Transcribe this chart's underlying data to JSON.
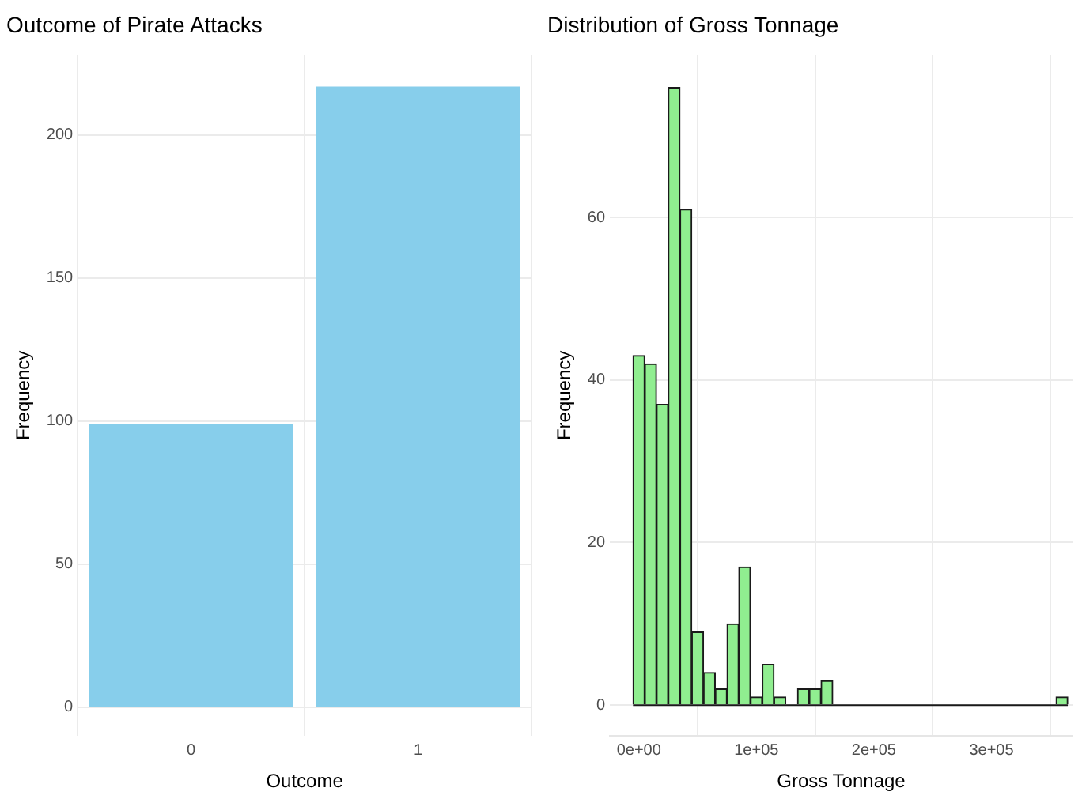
{
  "chart_data": [
    {
      "type": "bar",
      "title": "Outcome of Pirate Attacks",
      "xlabel": "Outcome",
      "ylabel": "Frequency",
      "categories": [
        "0",
        "1"
      ],
      "values": [
        99,
        217
      ],
      "color": "#87ceeb",
      "ylim": [
        -10,
        228
      ],
      "yticks": [
        0,
        50,
        100,
        150,
        200
      ],
      "grid": true
    },
    {
      "type": "histogram",
      "title": "Distribution of Gross Tonnage",
      "xlabel": "Gross Tonnage",
      "ylabel": "Frequency",
      "bins": [
        -5000,
        5000,
        15000,
        25000,
        35000,
        45000,
        55000,
        65000,
        75000,
        85000,
        95000,
        105000,
        115000,
        125000,
        135000,
        145000,
        155000,
        165000,
        175000,
        185000,
        195000,
        205000,
        215000,
        225000,
        235000,
        245000,
        255000,
        265000,
        275000,
        285000,
        295000,
        305000,
        315000,
        325000,
        335000,
        345000,
        355000,
        365000
      ],
      "values": [
        43,
        42,
        37,
        76,
        61,
        9,
        4,
        2,
        10,
        17,
        1,
        5,
        1,
        0,
        2,
        2,
        3,
        0,
        0,
        0,
        0,
        0,
        0,
        0,
        0,
        0,
        0,
        0,
        0,
        0,
        0,
        0,
        0,
        0,
        0,
        0,
        1
      ],
      "color": "#90ee90",
      "xlim": [
        -24700,
        369000
      ],
      "xticks": [
        {
          "value": 0,
          "label": "0e+00"
        },
        {
          "value": 100000,
          "label": "1e+05"
        },
        {
          "value": 200000,
          "label": "2e+05"
        },
        {
          "value": 300000,
          "label": "3e+05"
        }
      ],
      "ylim": [
        -3.8,
        80
      ],
      "yticks": [
        0,
        20,
        40,
        60
      ],
      "grid": true
    }
  ]
}
